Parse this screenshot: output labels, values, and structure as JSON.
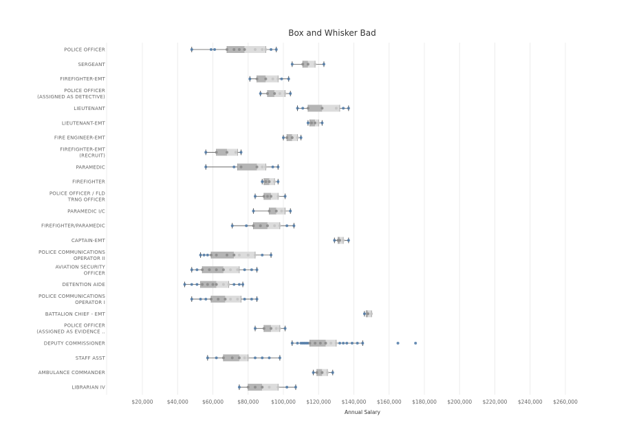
{
  "chart_data": {
    "type": "box",
    "title": "Box and Whisker Bad",
    "xlabel": "Annual Salary",
    "ylabel": "",
    "xlim": [
      0,
      270000
    ],
    "x_ticks": [
      20000,
      40000,
      60000,
      80000,
      100000,
      120000,
      140000,
      160000,
      180000,
      200000,
      220000,
      240000,
      260000
    ],
    "x_tick_labels": [
      "$20,000",
      "$40,000",
      "$60,000",
      "$80,000",
      "$100,000",
      "$120,000",
      "$140,000",
      "$160,000",
      "$180,000",
      "$200,000",
      "$220,000",
      "$240,000",
      "$260,000"
    ],
    "grid": true,
    "colors": {
      "box_dark": "#b5b5b5",
      "box_light": "#dcdcdc",
      "whisker": "#555555",
      "point": "#4e79a7",
      "grid": "#ececec"
    },
    "categories": [
      {
        "label": [
          "POLICE OFFICER"
        ],
        "min": 48000,
        "q1": 68000,
        "median": 78000,
        "q3": 90000,
        "max": 96000,
        "points": [
          48000,
          59000,
          61000,
          68000,
          72000,
          75000,
          78000,
          84000,
          88000,
          90000,
          93000,
          96000
        ]
      },
      {
        "label": [
          "SERGEANT"
        ],
        "min": 105000,
        "q1": 111000,
        "median": 114000,
        "q3": 118000,
        "max": 123000,
        "points": [
          105000,
          111000,
          114000,
          118000,
          123000
        ]
      },
      {
        "label": [
          "FIREFIGHTER-EMT"
        ],
        "min": 81000,
        "q1": 85000,
        "median": 90000,
        "q3": 97000,
        "max": 103000,
        "points": [
          81000,
          85000,
          90000,
          94000,
          97000,
          99000,
          103000
        ]
      },
      {
        "label": [
          "POLICE OFFICER",
          "(ASSIGNED AS DETECTIVE)"
        ],
        "min": 87000,
        "q1": 91000,
        "median": 95000,
        "q3": 101000,
        "max": 104000,
        "points": [
          87000,
          91000,
          95000,
          98000,
          101000,
          104000
        ]
      },
      {
        "label": [
          "LIEUTENANT"
        ],
        "min": 108000,
        "q1": 114000,
        "median": 122000,
        "q3": 132000,
        "max": 137000,
        "points": [
          108000,
          111000,
          114000,
          122000,
          130000,
          134000,
          137000
        ]
      },
      {
        "label": [
          "LIEUTENANT-EMT"
        ],
        "min": 114000,
        "q1": 115000,
        "median": 118000,
        "q3": 120000,
        "max": 122000,
        "points": [
          114000,
          116000,
          118000,
          120000,
          122000
        ]
      },
      {
        "label": [
          "FIRE ENGINEER-EMT"
        ],
        "min": 100000,
        "q1": 102000,
        "median": 105000,
        "q3": 108000,
        "max": 110000,
        "points": [
          100000,
          102000,
          105000,
          108000,
          110000
        ]
      },
      {
        "label": [
          "FIREFIGHTER-EMT",
          "(RECRUIT)"
        ],
        "min": 56000,
        "q1": 62000,
        "median": 68000,
        "q3": 74000,
        "max": 76000,
        "points": [
          56000,
          62000,
          68000,
          73000,
          76000
        ]
      },
      {
        "label": [
          "PARAMEDIC"
        ],
        "min": 56000,
        "q1": 74000,
        "median": 85000,
        "q3": 90000,
        "max": 97000,
        "points": [
          56000,
          72000,
          76000,
          85000,
          88000,
          90000,
          94000,
          97000
        ]
      },
      {
        "label": [
          "FIREFIGHTER"
        ],
        "min": 88000,
        "q1": 89000,
        "median": 92000,
        "q3": 95000,
        "max": 97000,
        "points": [
          88000,
          90000,
          92000,
          95000,
          97000
        ]
      },
      {
        "label": [
          "POLICE OFFICER / FLD",
          "TRNG OFFICER"
        ],
        "min": 84000,
        "q1": 89000,
        "median": 93000,
        "q3": 97000,
        "max": 101000,
        "points": [
          84000,
          89000,
          91000,
          93000,
          97000,
          101000
        ]
      },
      {
        "label": [
          "PARAMEDIC I/C"
        ],
        "min": 83000,
        "q1": 92000,
        "median": 96000,
        "q3": 101000,
        "max": 104000,
        "points": [
          83000,
          92000,
          96000,
          99000,
          101000,
          104000
        ]
      },
      {
        "label": [
          "FIREFIGHTER/PARAMEDIC"
        ],
        "min": 71000,
        "q1": 83000,
        "median": 91000,
        "q3": 98000,
        "max": 106000,
        "points": [
          71000,
          79000,
          83000,
          87000,
          91000,
          95000,
          98000,
          102000,
          106000
        ]
      },
      {
        "label": [
          "CAPTAIN-EMT"
        ],
        "min": 129000,
        "q1": 131000,
        "median": 132000,
        "q3": 134000,
        "max": 137000,
        "points": [
          129000,
          131000,
          132000,
          134000,
          137000
        ]
      },
      {
        "label": [
          "POLICE COMMUNICATIONS",
          "OPERATOR II"
        ],
        "min": 53000,
        "q1": 59000,
        "median": 72000,
        "q3": 84000,
        "max": 93000,
        "points": [
          53000,
          55000,
          57000,
          59000,
          62000,
          68000,
          72000,
          75000,
          80000,
          84000,
          88000,
          93000
        ]
      },
      {
        "label": [
          "AVIATION SECURITY",
          "OFFICER"
        ],
        "min": 48000,
        "q1": 54000,
        "median": 66000,
        "q3": 75000,
        "max": 85000,
        "points": [
          48000,
          51000,
          54000,
          58000,
          62000,
          66000,
          70000,
          74000,
          78000,
          82000,
          85000
        ]
      },
      {
        "label": [
          "DETENTION AIDE"
        ],
        "min": 44000,
        "q1": 53000,
        "median": 62000,
        "q3": 69000,
        "max": 77000,
        "points": [
          44000,
          48000,
          51000,
          54000,
          57000,
          60000,
          62000,
          66000,
          69000,
          72000,
          75000,
          77000
        ]
      },
      {
        "label": [
          "POLICE COMMUNICATIONS",
          "OPERATOR I"
        ],
        "min": 48000,
        "q1": 59000,
        "median": 67000,
        "q3": 76000,
        "max": 85000,
        "points": [
          48000,
          53000,
          56000,
          59000,
          63000,
          67000,
          70000,
          74000,
          78000,
          82000,
          85000
        ]
      },
      {
        "label": [
          "BATTALION CHIEF - EMT"
        ],
        "min": 146000,
        "q1": 147000,
        "median": 148000,
        "q3": 150000,
        "max": 150000,
        "points": [
          146000,
          148000,
          150000
        ]
      },
      {
        "label": [
          "POLICE OFFICER",
          "(ASSIGNED AS EVIDENCE .."
        ],
        "min": 84000,
        "q1": 89000,
        "median": 93000,
        "q3": 98000,
        "max": 101000,
        "points": [
          84000,
          89000,
          93000,
          96000,
          98000,
          101000
        ]
      },
      {
        "label": [
          "DEPUTY COMMISSIONER"
        ],
        "min": 105000,
        "q1": 115000,
        "median": 124000,
        "q3": 130000,
        "max": 145000,
        "points": [
          105000,
          108000,
          110000,
          111000,
          112000,
          113000,
          114000,
          115000,
          118000,
          121000,
          124000,
          127000,
          130000,
          132000,
          134000,
          136000,
          139000,
          142000,
          145000,
          165000,
          175000
        ]
      },
      {
        "label": [
          "STAFF ASST"
        ],
        "min": 57000,
        "q1": 66000,
        "median": 75000,
        "q3": 80000,
        "max": 98000,
        "points": [
          57000,
          62000,
          66000,
          71000,
          75000,
          78000,
          80000,
          84000,
          88000,
          92000,
          98000
        ]
      },
      {
        "label": [
          "AMBULANCE COMMANDER"
        ],
        "min": 117000,
        "q1": 119000,
        "median": 122000,
        "q3": 125000,
        "max": 128000,
        "points": [
          117000,
          119000,
          122000,
          125000,
          128000
        ]
      },
      {
        "label": [
          "LIBRARIAN IV"
        ],
        "min": 75000,
        "q1": 80000,
        "median": 88000,
        "q3": 97000,
        "max": 107000,
        "points": [
          75000,
          80000,
          84000,
          88000,
          92000,
          97000,
          102000,
          107000
        ]
      }
    ]
  }
}
